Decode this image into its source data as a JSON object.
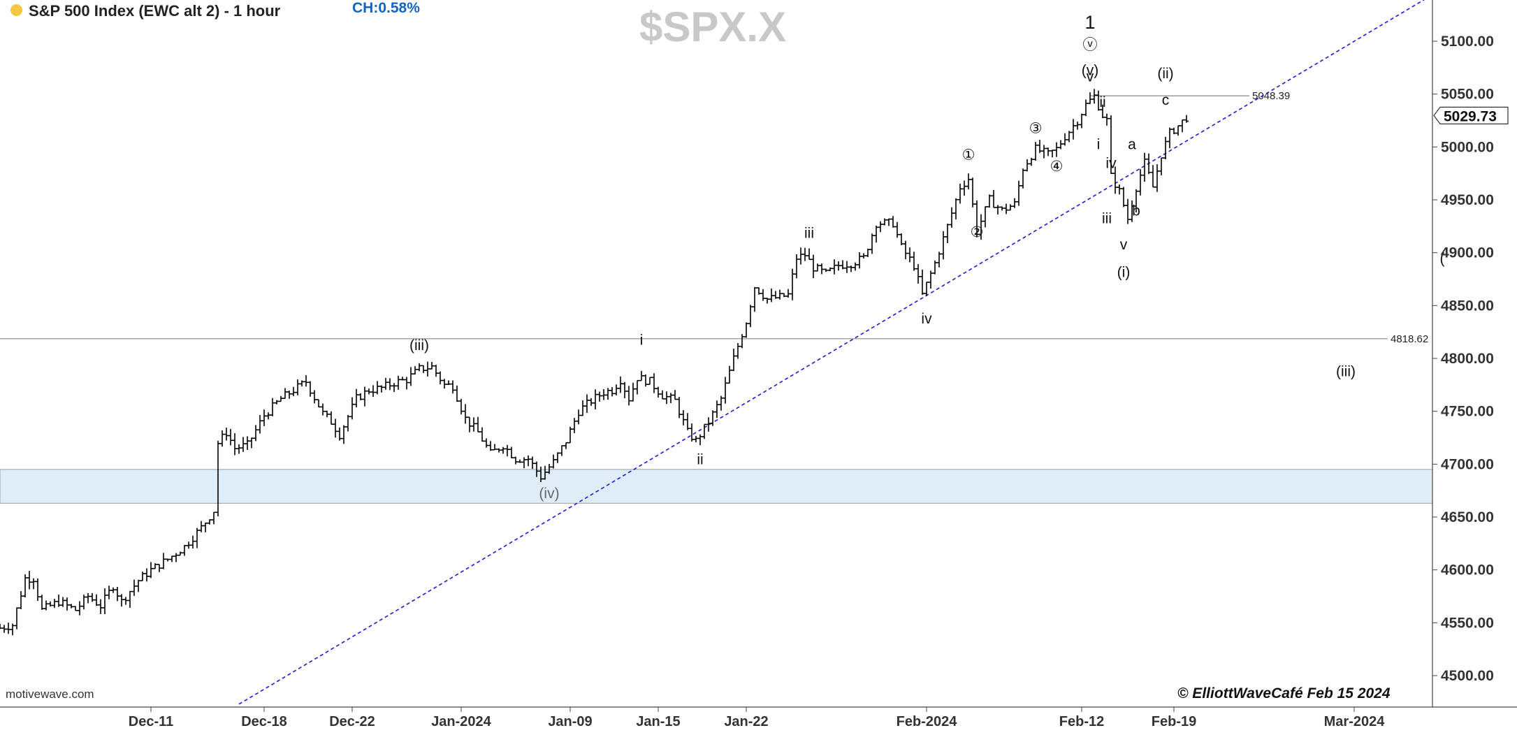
{
  "header": {
    "title": "S&P 500 Index (EWC alt 2) - 1 hour",
    "change": "CH:0.58%",
    "dot_color": "#f5c842",
    "change_color": "#1565c0"
  },
  "watermark": "$SPX.X",
  "source": "motivewave.com",
  "copyright": "© ElliottWaveCafé Feb 15 2024",
  "colors": {
    "bar": "#000000",
    "trendline": "#1a1ad6",
    "zone_fill": "#deedf7",
    "zone_border": "#9a9a9a",
    "hline": "#888888",
    "grid": "#cccccc",
    "axis": "#444444"
  },
  "chart_data": {
    "type": "ohlc",
    "ylim": [
      4480,
      5130
    ],
    "xlim": [
      0,
      365
    ],
    "y_ticks": [
      4500,
      4550,
      4600,
      4650,
      4700,
      4750,
      4800,
      4850,
      4900,
      4950,
      5000,
      5050,
      5100
    ],
    "y_tick_labels": [
      "4500.00",
      "4550.00",
      "4600.00",
      "4650.00",
      "4700.00",
      "4750.00",
      "4800.00",
      "4850.00",
      "4900.00",
      "4950.00",
      "5000.00",
      "5050.00",
      "5100.00"
    ],
    "x_ticks": [
      {
        "label": "Dec-11",
        "x": 36
      },
      {
        "label": "Dec-18",
        "x": 63
      },
      {
        "label": "Dec-22",
        "x": 84
      },
      {
        "label": "Jan-2024",
        "x": 110
      },
      {
        "label": "Jan-09",
        "x": 136
      },
      {
        "label": "Jan-15",
        "x": 157
      },
      {
        "label": "Jan-22",
        "x": 178
      },
      {
        "label": "Feb-2024",
        "x": 221
      },
      {
        "label": "Feb-12",
        "x": 258
      },
      {
        "label": "Feb-19",
        "x": 280
      },
      {
        "label": "Mar-2024",
        "x": 323
      }
    ],
    "ohlc_path": [
      [
        0,
        4545
      ],
      [
        3,
        4548
      ],
      [
        6,
        4592
      ],
      [
        8,
        4592
      ],
      [
        10,
        4562
      ],
      [
        14,
        4570
      ],
      [
        18,
        4562
      ],
      [
        21,
        4575
      ],
      [
        24,
        4566
      ],
      [
        27,
        4585
      ],
      [
        29,
        4570
      ],
      [
        33,
        4590
      ],
      [
        36,
        4600
      ],
      [
        40,
        4610
      ],
      [
        44,
        4622
      ],
      [
        48,
        4640
      ],
      [
        51,
        4656
      ],
      [
        52,
        4720
      ],
      [
        54,
        4730
      ],
      [
        56,
        4715
      ],
      [
        59,
        4718
      ],
      [
        63,
        4746
      ],
      [
        67,
        4762
      ],
      [
        70,
        4770
      ],
      [
        73,
        4778
      ],
      [
        77,
        4748
      ],
      [
        79,
        4740
      ],
      [
        81,
        4728
      ],
      [
        85,
        4762
      ],
      [
        88,
        4770
      ],
      [
        91,
        4772
      ],
      [
        94,
        4777
      ],
      [
        97,
        4780
      ],
      [
        100,
        4790
      ],
      [
        103,
        4792
      ],
      [
        106,
        4775
      ],
      [
        108,
        4774
      ],
      [
        111,
        4743
      ],
      [
        114,
        4730
      ],
      [
        117,
        4710
      ],
      [
        120,
        4718
      ],
      [
        123,
        4705
      ],
      [
        126,
        4705
      ],
      [
        129,
        4688
      ],
      [
        132,
        4702
      ],
      [
        135,
        4722
      ],
      [
        138,
        4750
      ],
      [
        141,
        4760
      ],
      [
        144,
        4768
      ],
      [
        146,
        4770
      ],
      [
        148,
        4780
      ],
      [
        150,
        4762
      ],
      [
        152,
        4782
      ],
      [
        155,
        4778
      ],
      [
        158,
        4765
      ],
      [
        161,
        4760
      ],
      [
        164,
        4730
      ],
      [
        166,
        4722
      ],
      [
        169,
        4740
      ],
      [
        172,
        4762
      ],
      [
        175,
        4800
      ],
      [
        178,
        4835
      ],
      [
        180,
        4868
      ],
      [
        183,
        4856
      ],
      [
        186,
        4858
      ],
      [
        188,
        4860
      ],
      [
        190,
        4895
      ],
      [
        192,
        4898
      ],
      [
        194,
        4886
      ],
      [
        197,
        4880
      ],
      [
        200,
        4888
      ],
      [
        203,
        4890
      ],
      [
        206,
        4895
      ],
      [
        209,
        4928
      ],
      [
        213,
        4928
      ],
      [
        215,
        4905
      ],
      [
        218,
        4888
      ],
      [
        220,
        4860
      ],
      [
        223,
        4890
      ],
      [
        226,
        4925
      ],
      [
        229,
        4962
      ],
      [
        231,
        4970
      ],
      [
        233,
        4920
      ],
      [
        236,
        4950
      ],
      [
        239,
        4940
      ],
      [
        242,
        4946
      ],
      [
        244,
        4980
      ],
      [
        247,
        4998
      ],
      [
        250,
        4993
      ],
      [
        252,
        4998
      ],
      [
        254,
        5010
      ],
      [
        257,
        5025
      ],
      [
        259,
        5040
      ],
      [
        261,
        5048
      ],
      [
        263,
        5030
      ],
      [
        264,
        5025
      ],
      [
        265,
        4972
      ],
      [
        267,
        4958
      ],
      [
        269,
        4932
      ],
      [
        271,
        4962
      ],
      [
        273,
        4985
      ],
      [
        275,
        4962
      ],
      [
        277,
        4993
      ],
      [
        279,
        5013
      ],
      [
        281,
        5020
      ],
      [
        283,
        5028
      ]
    ],
    "trendline": {
      "x1": 57,
      "y1": 4473,
      "x2": 340,
      "y2": 5140
    },
    "hlines": [
      {
        "value": 5048.39,
        "label": "5048.39",
        "x_start": 260,
        "x_end": 298
      },
      {
        "value": 4818.62,
        "label": "4818.62",
        "x_start": 0,
        "x_end": 331
      }
    ],
    "zone": {
      "low": 4663,
      "high": 4695
    },
    "last_price": "5029.73",
    "wave_labels": [
      {
        "text": "(iii)",
        "x": 100,
        "y": 4808
      },
      {
        "text": "(iv)",
        "x": 131,
        "y": 4668,
        "color": "#666666"
      },
      {
        "text": "i",
        "x": 153,
        "y": 4813
      },
      {
        "text": "ii",
        "x": 167,
        "y": 4700
      },
      {
        "text": "iii",
        "x": 193,
        "y": 4914
      },
      {
        "text": "iv",
        "x": 221,
        "y": 4833
      },
      {
        "text": "①",
        "x": 231,
        "y": 4988
      },
      {
        "text": "②",
        "x": 233,
        "y": 4915
      },
      {
        "text": "③",
        "x": 247,
        "y": 5013
      },
      {
        "text": "④",
        "x": 252,
        "y": 4977
      },
      {
        "text": "1",
        "x": 260,
        "y": 5112,
        "large": true
      },
      {
        "text": "ⓥ",
        "x": 260,
        "y": 5092
      },
      {
        "text": "(v)",
        "x": 260,
        "y": 5068
      },
      {
        "text": "v",
        "x": 260,
        "y": 5062
      },
      {
        "text": "ii",
        "x": 263,
        "y": 5038
      },
      {
        "text": "i",
        "x": 262,
        "y": 4998
      },
      {
        "text": "iv",
        "x": 265,
        "y": 4980
      },
      {
        "text": "iii",
        "x": 264,
        "y": 4928
      },
      {
        "text": "v",
        "x": 268,
        "y": 4903
      },
      {
        "text": "(i)",
        "x": 268,
        "y": 4877
      },
      {
        "text": "a",
        "x": 270,
        "y": 4998
      },
      {
        "text": "b",
        "x": 271,
        "y": 4935
      },
      {
        "text": "c",
        "x": 278,
        "y": 5040
      },
      {
        "text": "(ii)",
        "x": 278,
        "y": 5065
      },
      {
        "text": "(iii)",
        "x": 321,
        "y": 4783
      },
      {
        "text": "(",
        "x": 344,
        "y": 4890
      }
    ]
  }
}
